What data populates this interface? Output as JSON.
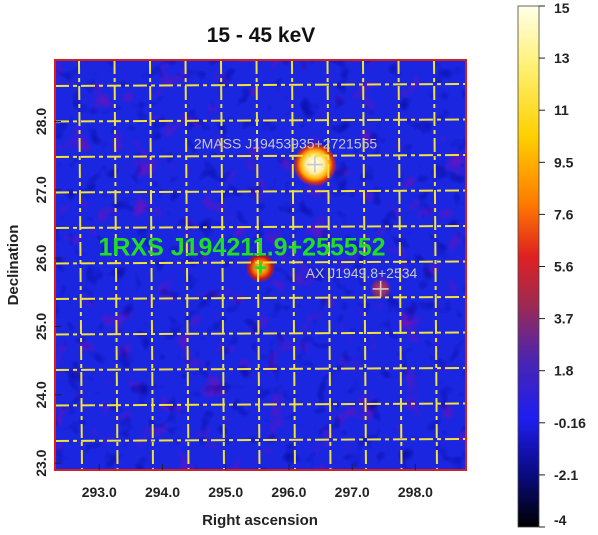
{
  "chart_data": {
    "type": "heatmap",
    "title": "15 - 45 keV",
    "xlabel": "Right ascension",
    "ylabel": "Declination",
    "xticks": [
      "293.0",
      "294.0",
      "295.0",
      "296.0",
      "297.0",
      "298.0"
    ],
    "yticks": [
      "23.0",
      "24.0",
      "25.0",
      "26.0",
      "27.0",
      "28.0"
    ],
    "xlim": [
      292.3,
      298.8
    ],
    "ylim": [
      22.9,
      28.9
    ],
    "grid": true,
    "colorbar": {
      "ticks": [
        "15",
        "13",
        "11",
        "9.5",
        "7.6",
        "5.6",
        "3.7",
        "1.8",
        "-0.16",
        "-2.1",
        "-4"
      ],
      "range": [
        -4,
        15
      ],
      "colors": [
        "#000000",
        "#0a0a80",
        "#1e1ef0",
        "#7a2a70",
        "#d02020",
        "#ff8000",
        "#ffe000",
        "#ffffe8"
      ]
    },
    "sources": [
      {
        "label": "1RXS J194211.9+255552",
        "ra": 295.55,
        "dec": 25.86,
        "color": "#22dd22",
        "marker": "+"
      },
      {
        "label": "2MASS J19453935+2721555",
        "ra": 296.41,
        "dec": 27.37,
        "color": "#c8c8c8",
        "marker": "+"
      },
      {
        "label": "AX J1949.8+2534",
        "ra": 297.45,
        "dec": 25.55,
        "color": "#c8c8c8",
        "marker": "+"
      }
    ],
    "hotspots": [
      {
        "ra": 296.41,
        "dec": 27.37,
        "value": 15
      },
      {
        "ra": 295.55,
        "dec": 25.86,
        "value": 9.5
      },
      {
        "ra": 297.45,
        "dec": 25.55,
        "value": 3.7
      }
    ]
  }
}
